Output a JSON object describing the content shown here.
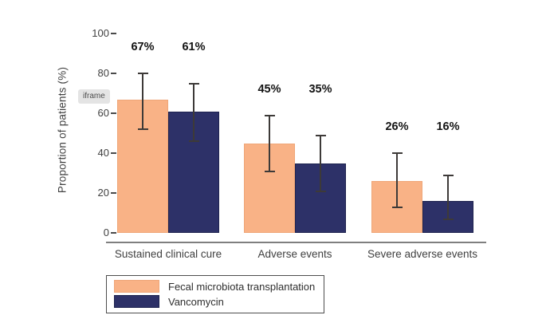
{
  "overlay": {
    "iframe_badge": "iframe"
  },
  "chart_data": {
    "type": "bar",
    "title": "",
    "ylabel": "Proportion of patients (%)",
    "xlabel": "",
    "ylim": [
      0,
      100
    ],
    "yticks": [
      0,
      20,
      40,
      60,
      80,
      100
    ],
    "grid": false,
    "legend_position": "bottom-left",
    "categories": [
      "Sustained clinical cure",
      "Adverse events",
      "Severe adverse events"
    ],
    "series": [
      {
        "name": "Fecal microbiota transplantation",
        "color": "#F9B286",
        "border_color": "#EFA678",
        "values": [
          67,
          45,
          26
        ],
        "labels": [
          "67%",
          "45%",
          "26%"
        ],
        "ci_low": [
          52,
          31,
          13
        ],
        "ci_high": [
          80,
          59,
          40
        ]
      },
      {
        "name": "Vancomycin",
        "color": "#2D3168",
        "border_color": "#1E234F",
        "values": [
          61,
          35,
          16
        ],
        "labels": [
          "61%",
          "35%",
          "16%"
        ],
        "ci_low": [
          46,
          21,
          7
        ],
        "ci_high": [
          75,
          49,
          29
        ]
      }
    ]
  },
  "colors": {
    "error_bar": "#3d3a38",
    "axis_line": "#7f7f7f",
    "tick_mark": "#4a4a4a",
    "text": "#404040",
    "value_label": "#141414"
  }
}
